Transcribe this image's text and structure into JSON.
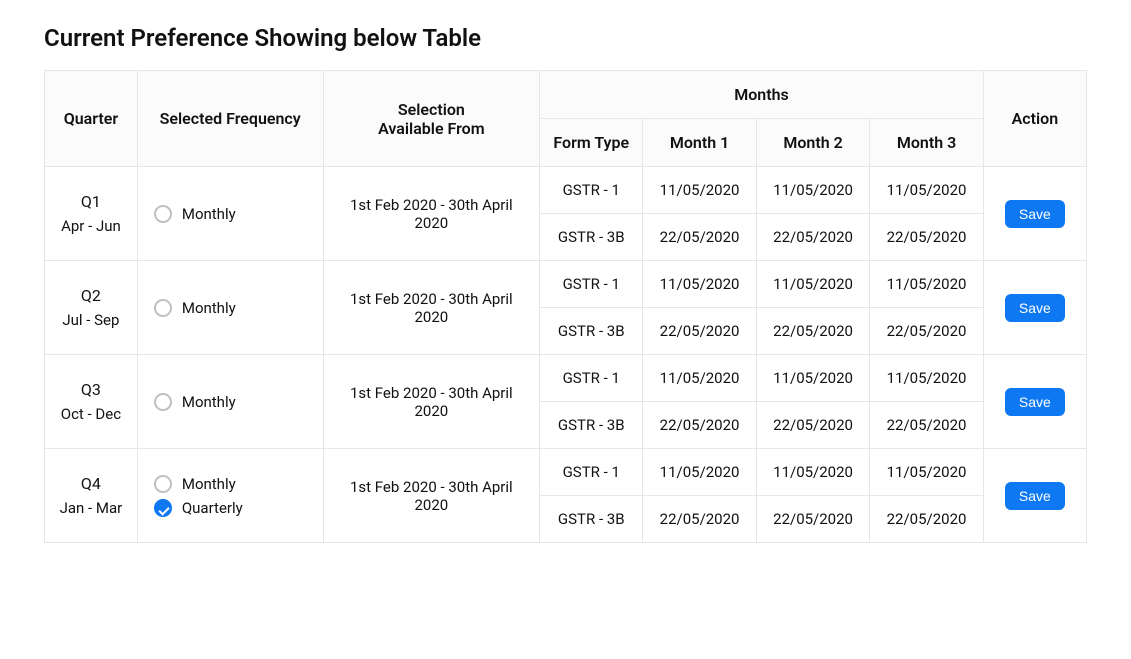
{
  "title": "Current Preference Showing below Table",
  "headers": {
    "quarter": "Quarter",
    "selected_frequency": "Selected Frequency",
    "selection_available_from_line1": "Selection",
    "selection_available_from_line2": "Available From",
    "months": "Months",
    "form_type": "Form Type",
    "month1": "Month 1",
    "month2": "Month 2",
    "month3": "Month 3",
    "action": "Action"
  },
  "save_label": "Save",
  "rows": [
    {
      "quarter": "Q1",
      "quarter_range": "Apr - Jun",
      "frequencies": [
        {
          "label": "Monthly",
          "checked": false
        }
      ],
      "selection": "1st Feb 2020 - 30th April 2020",
      "forms": [
        {
          "form_type": "GSTR - 1",
          "m1": "11/05/2020",
          "m2": "11/05/2020",
          "m3": "11/05/2020"
        },
        {
          "form_type": "GSTR - 3B",
          "m1": "22/05/2020",
          "m2": "22/05/2020",
          "m3": "22/05/2020"
        }
      ]
    },
    {
      "quarter": "Q2",
      "quarter_range": "Jul - Sep",
      "frequencies": [
        {
          "label": "Monthly",
          "checked": false
        }
      ],
      "selection": "1st Feb 2020 - 30th April 2020",
      "forms": [
        {
          "form_type": "GSTR - 1",
          "m1": "11/05/2020",
          "m2": "11/05/2020",
          "m3": "11/05/2020"
        },
        {
          "form_type": "GSTR - 3B",
          "m1": "22/05/2020",
          "m2": "22/05/2020",
          "m3": "22/05/2020"
        }
      ]
    },
    {
      "quarter": "Q3",
      "quarter_range": "Oct - Dec",
      "frequencies": [
        {
          "label": "Monthly",
          "checked": false
        }
      ],
      "selection": "1st Feb 2020 - 30th April 2020",
      "forms": [
        {
          "form_type": "GSTR - 1",
          "m1": "11/05/2020",
          "m2": "11/05/2020",
          "m3": "11/05/2020"
        },
        {
          "form_type": "GSTR - 3B",
          "m1": "22/05/2020",
          "m2": "22/05/2020",
          "m3": "22/05/2020"
        }
      ]
    },
    {
      "quarter": "Q4",
      "quarter_range": "Jan - Mar",
      "frequencies": [
        {
          "label": "Monthly",
          "checked": false
        },
        {
          "label": "Quarterly",
          "checked": true
        }
      ],
      "selection": "1st Feb 2020 - 30th April 2020",
      "forms": [
        {
          "form_type": "GSTR - 1",
          "m1": "11/05/2020",
          "m2": "11/05/2020",
          "m3": "11/05/2020"
        },
        {
          "form_type": "GSTR - 3B",
          "m1": "22/05/2020",
          "m2": "22/05/2020",
          "m3": "22/05/2020"
        }
      ]
    }
  ]
}
